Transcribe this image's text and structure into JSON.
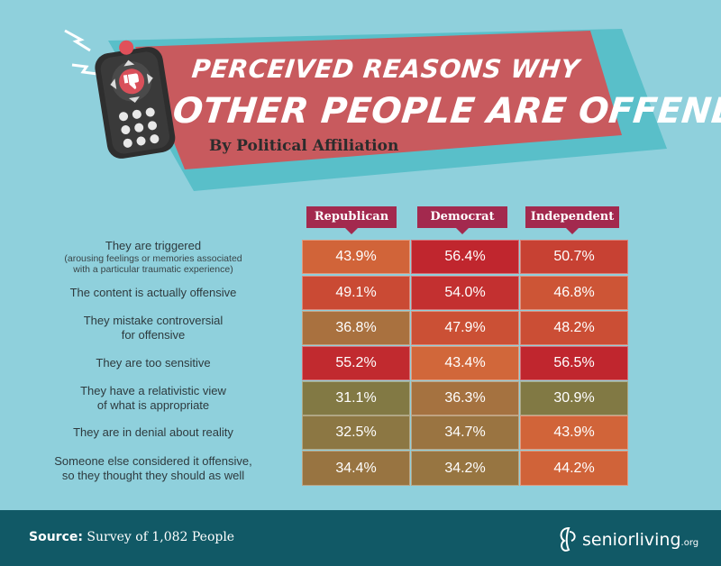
{
  "title": {
    "line1": "PERCEIVED REASONS WHY",
    "line2": "OTHER PEOPLE ARE OFFENDED",
    "subtitle": "By Political Affiliation"
  },
  "colors": {
    "banner": "#c85a5e",
    "banner_shadow": "#59bfc9",
    "header_tab": "#a3294e",
    "footer": "#115966",
    "scale_low": "#7b7a45",
    "scale_mid": "#d2693a",
    "scale_high": "#c0262e"
  },
  "chart_data": {
    "type": "table",
    "title": "Perceived Reasons Why Other People Are Offended",
    "subtitle": "By Political Affiliation",
    "columns": [
      "Republican",
      "Democrat",
      "Independent"
    ],
    "rows": [
      {
        "label": "They are triggered",
        "sublabel1": "(arousing feelings or memories associated",
        "sublabel2": "with a particular traumatic experience)",
        "values": [
          43.9,
          56.4,
          50.7
        ],
        "display": [
          "43.9%",
          "56.4%",
          "50.7%"
        ]
      },
      {
        "label": "The content is actually offensive",
        "values": [
          49.1,
          54.0,
          46.8
        ],
        "display": [
          "49.1%",
          "54.0%",
          "46.8%"
        ]
      },
      {
        "label": "They mistake controversial",
        "label2": "for offensive",
        "values": [
          36.8,
          47.9,
          48.2
        ],
        "display": [
          "36.8%",
          "47.9%",
          "48.2%"
        ]
      },
      {
        "label": "They are too sensitive",
        "values": [
          55.2,
          43.4,
          56.5
        ],
        "display": [
          "55.2%",
          "43.4%",
          "56.5%"
        ]
      },
      {
        "label": "They have a relativistic view",
        "label2": "of what is appropriate",
        "values": [
          31.1,
          36.3,
          30.9
        ],
        "display": [
          "31.1%",
          "36.3%",
          "30.9%"
        ]
      },
      {
        "label": "They are in denial about reality",
        "values": [
          32.5,
          34.7,
          43.9
        ],
        "display": [
          "32.5%",
          "34.7%",
          "43.9%"
        ]
      },
      {
        "label": "Someone else considered it offensive,",
        "label2": "so they thought they should as well",
        "values": [
          34.4,
          34.2,
          44.2
        ],
        "display": [
          "34.4%",
          "34.2%",
          "44.2%"
        ]
      }
    ],
    "unit": "%"
  },
  "footer": {
    "source_label": "Source:",
    "source_text": " Survey of 1,082 People",
    "logo_text": "seniorliving",
    "logo_suffix": ".org"
  },
  "icons": {
    "remote": "tv-remote-icon",
    "thumb": "thumbs-down-icon",
    "spark": "lightning-icon"
  }
}
